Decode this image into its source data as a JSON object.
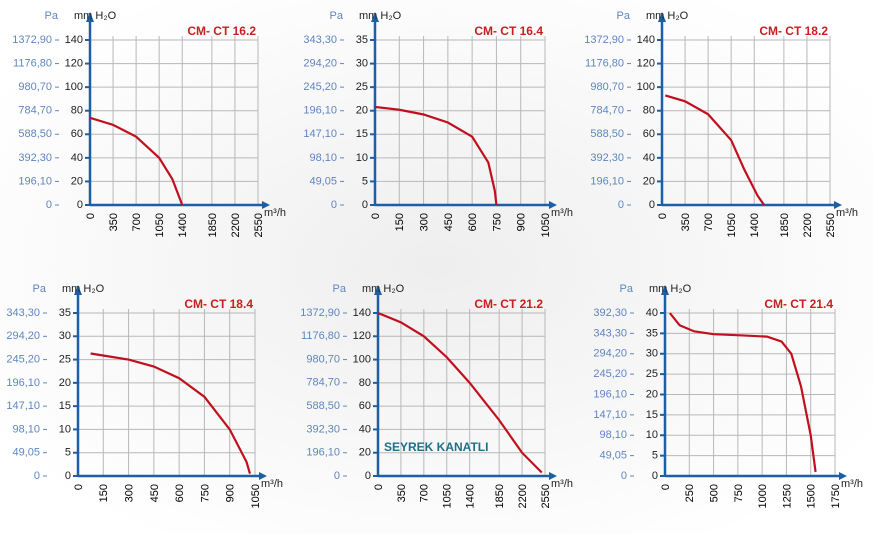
{
  "chart_data": [
    {
      "type": "line",
      "title": "CM- CT 16.2",
      "y_label": "mm H₂O",
      "y2_label": "Pa",
      "x_label": "m³/h",
      "x": [
        0,
        350,
        700,
        1050,
        1250,
        1400
      ],
      "values": [
        74,
        68,
        58,
        40,
        22,
        0
      ],
      "color": "#c0101e",
      "xlim": [
        0,
        2550
      ],
      "xticks": [
        0,
        350,
        700,
        1050,
        1400,
        1850,
        2200,
        2550
      ],
      "ylim": [
        0,
        140
      ],
      "yticks": [
        0,
        20,
        40,
        60,
        80,
        100,
        120,
        140
      ],
      "y2lim": [
        0,
        1372.9
      ],
      "y2ticks": [
        0,
        {
          "value": 196.1,
          "label": "196,10"
        },
        {
          "value": 392.3,
          "label": "392,30"
        },
        {
          "value": 588.5,
          "label": "588,50"
        },
        {
          "value": 784.7,
          "label": "784,70"
        },
        {
          "value": 980.7,
          "label": "980,70"
        },
        {
          "value": 1176.8,
          "label": "1176,80"
        },
        {
          "value": 1372.9,
          "label": "1372,90"
        }
      ],
      "grid": true
    },
    {
      "type": "line",
      "title": "CM- CT 16.4",
      "y_label": "mm H₂O",
      "y2_label": "Pa",
      "x_label": "m³/h",
      "x": [
        0,
        150,
        300,
        450,
        600,
        700,
        740,
        750
      ],
      "values": [
        20.8,
        20.2,
        19.2,
        17.5,
        14.5,
        9,
        3,
        0
      ],
      "color": "#c0101e",
      "xlim": [
        0,
        1050
      ],
      "xticks": [
        0,
        150,
        300,
        450,
        600,
        750,
        900,
        1050
      ],
      "ylim": [
        0,
        35
      ],
      "yticks": [
        0,
        5,
        10,
        15,
        20,
        25,
        30,
        35
      ],
      "y2lim": [
        0,
        343.3
      ],
      "y2ticks": [
        0,
        {
          "value": 49.05,
          "label": "49,05"
        },
        {
          "value": 98.1,
          "label": "98,10"
        },
        {
          "value": 147.1,
          "label": "147,10"
        },
        {
          "value": 196.1,
          "label": "196,10"
        },
        {
          "value": 245.2,
          "label": "245,20"
        },
        {
          "value": 294.2,
          "label": "294,20"
        },
        {
          "value": 343.3,
          "label": "343,30"
        }
      ],
      "grid": true
    },
    {
      "type": "line",
      "title": "CM- CT 18.2",
      "y_label": "mm H₂O",
      "y2_label": "Pa",
      "x_label": "m³/h",
      "x": [
        50,
        350,
        700,
        1050,
        1250,
        1450,
        1550
      ],
      "values": [
        93,
        88,
        77,
        55,
        30,
        8,
        0
      ],
      "color": "#c0101e",
      "xlim": [
        0,
        2550
      ],
      "xticks": [
        0,
        350,
        700,
        1050,
        1400,
        1850,
        2200,
        2550
      ],
      "ylim": [
        0,
        140
      ],
      "yticks": [
        0,
        20,
        40,
        60,
        80,
        100,
        120,
        140
      ],
      "y2lim": [
        0,
        1372.9
      ],
      "y2ticks": [
        0,
        {
          "value": 196.1,
          "label": "196,10"
        },
        {
          "value": 392.3,
          "label": "392,30"
        },
        {
          "value": 588.5,
          "label": "588,50"
        },
        {
          "value": 784.7,
          "label": "784,70"
        },
        {
          "value": 980.7,
          "label": "980,70"
        },
        {
          "value": 1176.8,
          "label": "1176,80"
        },
        {
          "value": 1372.9,
          "label": "1372,90"
        }
      ],
      "grid": true
    },
    {
      "type": "line",
      "title": "CM- CT 18.4",
      "y_label": "mm H₂O",
      "y2_label": "Pa",
      "x_label": "m³/h",
      "x": [
        75,
        300,
        450,
        600,
        750,
        900,
        1000,
        1020
      ],
      "values": [
        26.3,
        25,
        23.5,
        21,
        17,
        10,
        3,
        0.5
      ],
      "color": "#c0101e",
      "xlim": [
        0,
        1050
      ],
      "xticks": [
        0,
        150,
        300,
        450,
        600,
        750,
        900,
        1050
      ],
      "ylim": [
        0,
        35
      ],
      "yticks": [
        0,
        5,
        10,
        15,
        20,
        25,
        30,
        35
      ],
      "y2lim": [
        0,
        343.3
      ],
      "y2ticks": [
        0,
        {
          "value": 49.05,
          "label": "49,05"
        },
        {
          "value": 98.1,
          "label": "98,10"
        },
        {
          "value": 147.1,
          "label": "147,10"
        },
        {
          "value": 196.1,
          "label": "196,10"
        },
        {
          "value": 245.2,
          "label": "245,20"
        },
        {
          "value": 294.2,
          "label": "294,20"
        },
        {
          "value": 343.3,
          "label": "343,30"
        }
      ],
      "grid": true
    },
    {
      "type": "line",
      "title": "CM- CT 21.2",
      "y_label": "mm H₂O",
      "y2_label": "Pa",
      "x_label": "m³/h",
      "annotation": "SEYREK KANATLI",
      "x": [
        0,
        350,
        700,
        1050,
        1400,
        1850,
        2200,
        2500
      ],
      "values": [
        140,
        132,
        120,
        102,
        80,
        48,
        20,
        3
      ],
      "color": "#c0101e",
      "xlim": [
        0,
        2550
      ],
      "xticks": [
        0,
        350,
        700,
        1050,
        1400,
        1850,
        2200,
        2550
      ],
      "ylim": [
        0,
        140
      ],
      "yticks": [
        0,
        20,
        40,
        60,
        80,
        100,
        120,
        140
      ],
      "y2lim": [
        0,
        1372.9
      ],
      "y2ticks": [
        0,
        {
          "value": 196.1,
          "label": "196,10"
        },
        {
          "value": 392.3,
          "label": "392,30"
        },
        {
          "value": 588.5,
          "label": "588,50"
        },
        {
          "value": 784.7,
          "label": "784,70"
        },
        {
          "value": 980.7,
          "label": "980,70"
        },
        {
          "value": 1176.8,
          "label": "1176,80"
        },
        {
          "value": 1372.9,
          "label": "1372,90"
        }
      ],
      "grid": true
    },
    {
      "type": "line",
      "title": "CM- CT 21.4",
      "y_label": "mm H₂O",
      "y2_label": "Pa",
      "x_label": "m³/h",
      "x": [
        50,
        150,
        300,
        500,
        800,
        1050,
        1200,
        1300,
        1400,
        1500,
        1550
      ],
      "values": [
        40,
        37,
        35.5,
        34.8,
        34.5,
        34.2,
        33,
        30,
        22,
        10,
        1
      ],
      "color": "#c0101e",
      "xlim": [
        0,
        1750
      ],
      "xticks": [
        0,
        250,
        500,
        750,
        1000,
        1250,
        1500,
        1750
      ],
      "ylim": [
        0,
        40
      ],
      "yticks": [
        0,
        5,
        10,
        15,
        20,
        25,
        30,
        35,
        40
      ],
      "y2lim": [
        0,
        392.3
      ],
      "y2ticks": [
        0,
        {
          "value": 49.05,
          "label": "49,05"
        },
        {
          "value": 98.1,
          "label": "98,10"
        },
        {
          "value": 147.1,
          "label": "147,10"
        },
        {
          "value": 196.1,
          "label": "196,10"
        },
        {
          "value": 245.2,
          "label": "245,20"
        },
        {
          "value": 294.2,
          "label": "294,20"
        },
        {
          "value": 343.3,
          "label": "343,30"
        },
        {
          "value": 392.3,
          "label": "392,30"
        }
      ],
      "grid": true
    }
  ]
}
